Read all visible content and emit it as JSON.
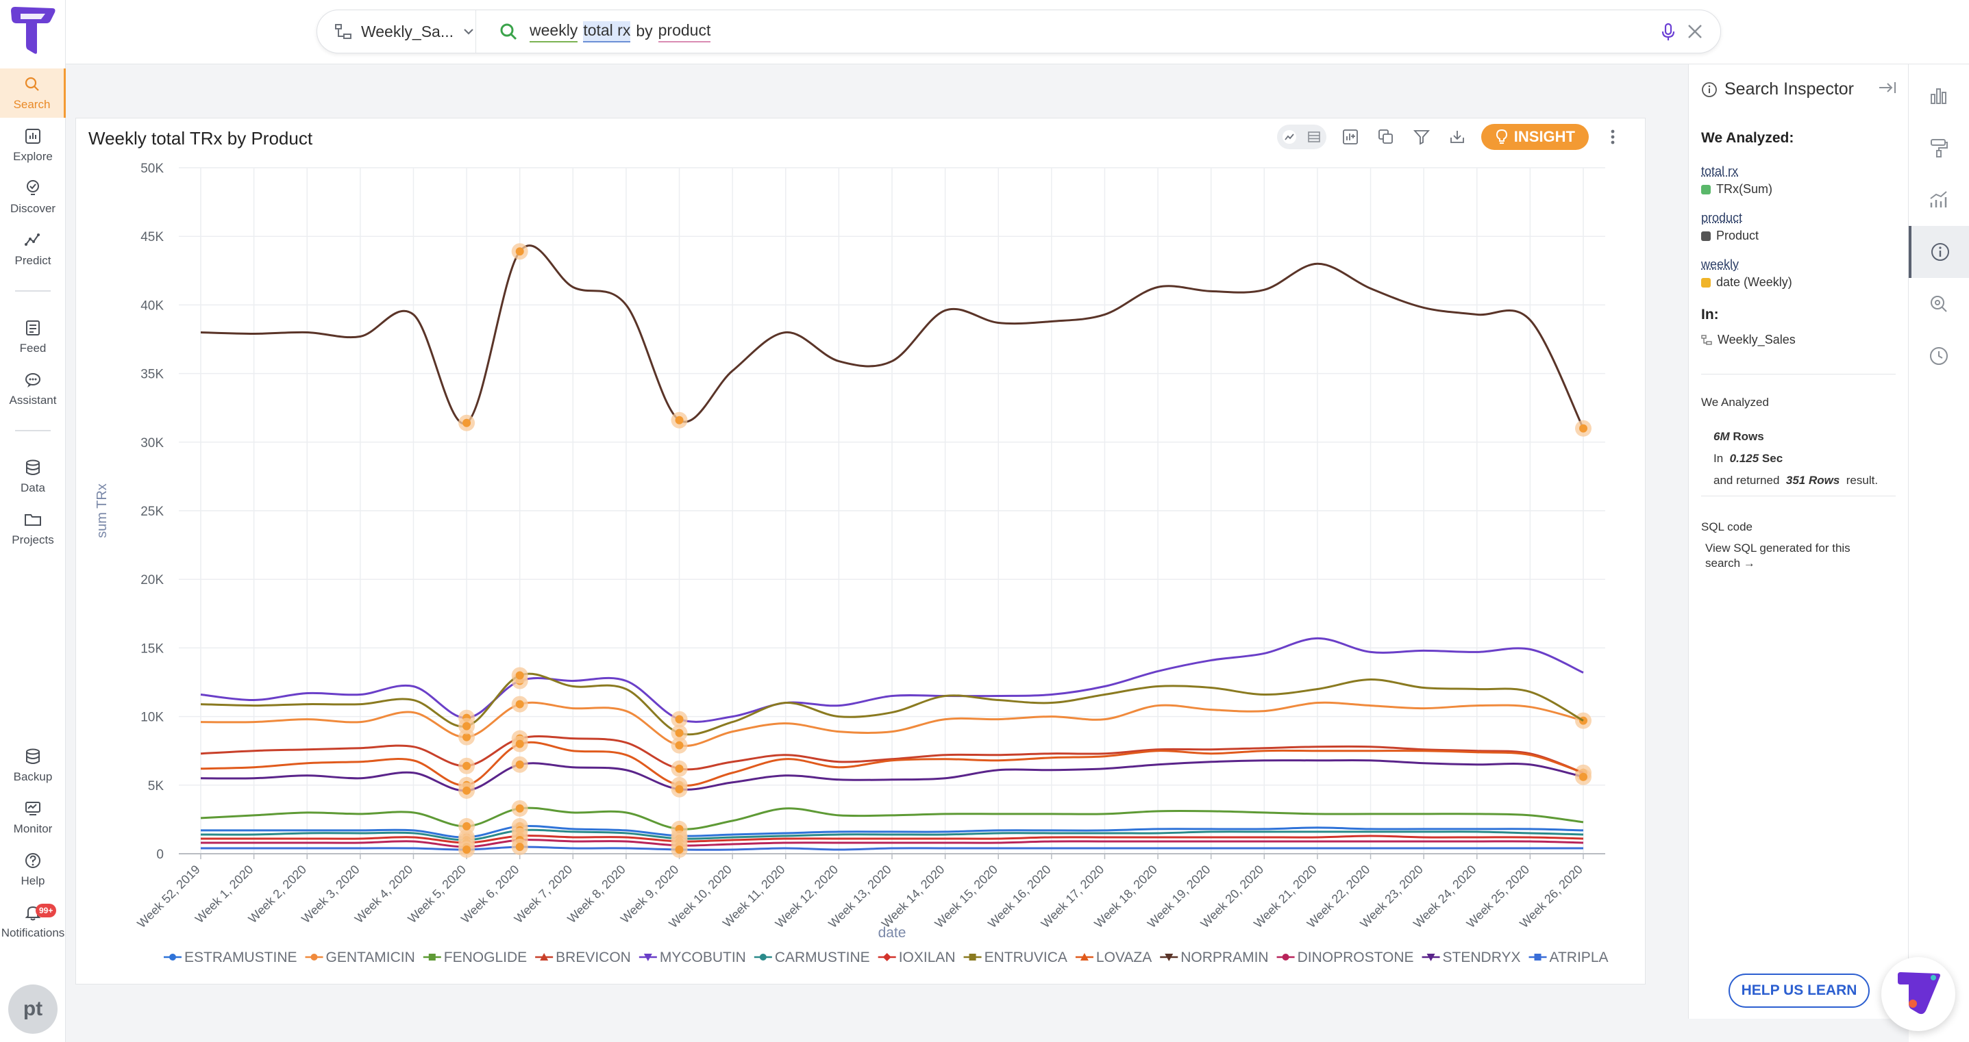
{
  "nav": {
    "items": [
      {
        "label": "Search",
        "icon": "search-icon"
      },
      {
        "label": "Explore",
        "icon": "explore-icon"
      },
      {
        "label": "Discover",
        "icon": "discover-icon"
      },
      {
        "label": "Predict",
        "icon": "predict-icon"
      },
      {
        "label": "Feed",
        "icon": "feed-icon"
      },
      {
        "label": "Assistant",
        "icon": "assistant-icon"
      },
      {
        "label": "Data",
        "icon": "database-icon"
      },
      {
        "label": "Projects",
        "icon": "folder-icon"
      },
      {
        "label": "Backup",
        "icon": "backup-icon"
      },
      {
        "label": "Monitor",
        "icon": "monitor-icon"
      },
      {
        "label": "Help",
        "icon": "help-icon"
      },
      {
        "label": "Notifications",
        "icon": "bell-icon"
      }
    ],
    "notification_badge": "99+",
    "avatar_initials": "pt",
    "accent_color": "#f39a33"
  },
  "search": {
    "source": "Weekly_Sa...",
    "tokens": [
      "weekly",
      "total rx",
      "by",
      "product"
    ]
  },
  "card": {
    "title": "Weekly total TRx by Product",
    "insight_label": "INSIGHT"
  },
  "inspector": {
    "title": "Search Inspector",
    "we_analyzed_heading": "We Analyzed:",
    "columns": [
      {
        "token": "total rx",
        "column": "TRx(Sum)",
        "color": "#5ab86a"
      },
      {
        "token": "product",
        "column": "Product",
        "color": "#555555"
      },
      {
        "token": "weekly",
        "column": "date (Weekly)",
        "color": "#f0b429"
      }
    ],
    "in_heading": "In:",
    "source": "Weekly_Sales",
    "stats_heading": "We Analyzed",
    "rows_value": "6M",
    "rows_label": "Rows",
    "in_label": "In",
    "sec_value": "0.125",
    "sec_label": "Sec",
    "returned_prefix": "and returned",
    "returned_value": "351 Rows",
    "returned_suffix": "result.",
    "sql_heading": "SQL code",
    "sql_link": "View SQL generated for this search →",
    "help_button": "HELP US LEARN"
  },
  "chart_data": {
    "type": "line",
    "xlabel": "date",
    "ylabel": "sum TRx",
    "ylim": [
      0,
      50000
    ],
    "yticks": [
      "0",
      "5K",
      "10K",
      "15K",
      "20K",
      "25K",
      "30K",
      "35K",
      "40K",
      "45K",
      "50K"
    ],
    "x": [
      "Week 52, 2019",
      "Week 1, 2020",
      "Week 2, 2020",
      "Week 3, 2020",
      "Week 4, 2020",
      "Week 5, 2020",
      "Week 6, 2020",
      "Week 7, 2020",
      "Week 8, 2020",
      "Week 9, 2020",
      "Week 10, 2020",
      "Week 11, 2020",
      "Week 12, 2020",
      "Week 13, 2020",
      "Week 14, 2020",
      "Week 15, 2020",
      "Week 16, 2020",
      "Week 17, 2020",
      "Week 18, 2020",
      "Week 19, 2020",
      "Week 20, 2020",
      "Week 21, 2020",
      "Week 22, 2020",
      "Week 23, 2020",
      "Week 24, 2020",
      "Week 25, 2020",
      "Week 26, 2020"
    ],
    "legend_position": "bottom",
    "grid": true,
    "series": [
      {
        "name": "ESTRAMUSTINE",
        "color": "#2f73d8",
        "marker": "circle",
        "values": [
          1700,
          1700,
          1700,
          1700,
          1700,
          1200,
          2000,
          1800,
          1700,
          1300,
          1400,
          1500,
          1600,
          1600,
          1600,
          1700,
          1700,
          1700,
          1800,
          1800,
          1800,
          1900,
          1800,
          1800,
          1800,
          1800,
          1700
        ]
      },
      {
        "name": "GENTAMICIN",
        "color": "#f08a3c",
        "marker": "circle",
        "values": [
          9600,
          9600,
          9800,
          9600,
          10300,
          8500,
          10900,
          10600,
          10400,
          7900,
          8900,
          9500,
          8900,
          8900,
          9800,
          9800,
          10000,
          9800,
          10800,
          10500,
          10400,
          11000,
          10800,
          10600,
          10800,
          10700,
          9700
        ]
      },
      {
        "name": "FENOGLIDE",
        "color": "#5e9a35",
        "marker": "square",
        "values": [
          2600,
          2800,
          3000,
          2900,
          3000,
          2000,
          3300,
          3000,
          3000,
          1800,
          2400,
          3300,
          2800,
          2800,
          2900,
          2900,
          2900,
          2900,
          3100,
          3100,
          3000,
          2900,
          2900,
          2900,
          2900,
          2800,
          2300
        ]
      },
      {
        "name": "BREVICON",
        "color": "#c8402a",
        "marker": "triangle",
        "values": [
          7300,
          7500,
          7600,
          7700,
          7800,
          6400,
          8400,
          8400,
          8100,
          6200,
          6700,
          7200,
          6700,
          6900,
          7200,
          7200,
          7300,
          7300,
          7600,
          7600,
          7700,
          7800,
          7800,
          7600,
          7500,
          7300,
          5900
        ]
      },
      {
        "name": "MYCOBUTIN",
        "color": "#6a3fc8",
        "marker": "triangle-down",
        "values": [
          11600,
          11200,
          11700,
          11600,
          12200,
          9900,
          12600,
          12600,
          12600,
          9800,
          10000,
          11000,
          10800,
          11500,
          11500,
          11500,
          11600,
          12200,
          13300,
          14100,
          14600,
          15700,
          14700,
          14800,
          14700,
          14900,
          13200
        ]
      },
      {
        "name": "CARMUSTINE",
        "color": "#2a8a8a",
        "marker": "circle",
        "values": [
          1400,
          1400,
          1500,
          1500,
          1500,
          1000,
          1700,
          1600,
          1500,
          1100,
          1200,
          1300,
          1400,
          1400,
          1400,
          1500,
          1500,
          1500,
          1500,
          1600,
          1600,
          1600,
          1600,
          1600,
          1600,
          1500,
          1400
        ]
      },
      {
        "name": "IOXILAN",
        "color": "#d2332b",
        "marker": "diamond",
        "values": [
          1100,
          1100,
          1100,
          1100,
          1200,
          800,
          1300,
          1200,
          1200,
          900,
          1000,
          1100,
          1100,
          1100,
          1100,
          1100,
          1200,
          1200,
          1200,
          1200,
          1200,
          1200,
          1300,
          1200,
          1200,
          1200,
          1100
        ]
      },
      {
        "name": "ENTRUVICA",
        "color": "#8a7a20",
        "marker": "square",
        "values": [
          10900,
          10800,
          10900,
          10900,
          11200,
          9300,
          13000,
          12200,
          12000,
          8800,
          9600,
          11000,
          10000,
          10300,
          11500,
          11200,
          11000,
          11600,
          12200,
          12100,
          11600,
          12000,
          12700,
          12100,
          12000,
          11800,
          9700
        ]
      },
      {
        "name": "LOVAZA",
        "color": "#e05a1c",
        "marker": "triangle",
        "values": [
          6200,
          6300,
          6600,
          6700,
          6800,
          5000,
          8000,
          7500,
          7200,
          5000,
          5900,
          6900,
          6300,
          6800,
          6900,
          6800,
          7000,
          7100,
          7500,
          7300,
          7500,
          7500,
          7500,
          7500,
          7400,
          7200,
          5900
        ]
      },
      {
        "name": "NORPRAMIN",
        "color": "#5a3428",
        "marker": "triangle-down",
        "values": [
          38000,
          37900,
          38000,
          37700,
          39300,
          31400,
          43900,
          41300,
          40000,
          31600,
          35200,
          38000,
          35900,
          35900,
          39600,
          38700,
          38800,
          39300,
          41300,
          41000,
          41100,
          43000,
          41200,
          39800,
          39300,
          38900,
          31000
        ]
      },
      {
        "name": "DINOPROSTONE",
        "color": "#b8245a",
        "marker": "circle",
        "values": [
          800,
          800,
          800,
          800,
          900,
          500,
          1000,
          900,
          900,
          600,
          700,
          800,
          800,
          800,
          800,
          800,
          900,
          900,
          900,
          900,
          900,
          900,
          900,
          900,
          900,
          900,
          800
        ]
      },
      {
        "name": "STENDRYX",
        "color": "#5a248a",
        "marker": "triangle-down",
        "values": [
          5500,
          5500,
          5700,
          5500,
          5900,
          4600,
          6500,
          6300,
          6100,
          4700,
          5200,
          5700,
          5400,
          5400,
          5500,
          6100,
          6100,
          6200,
          6500,
          6700,
          6800,
          6800,
          6800,
          6600,
          6500,
          6500,
          5600
        ]
      },
      {
        "name": "ATRIPLA",
        "color": "#3a6ed8",
        "marker": "square",
        "values": [
          400,
          400,
          400,
          400,
          400,
          300,
          500,
          400,
          400,
          300,
          300,
          400,
          300,
          400,
          400,
          400,
          400,
          400,
          400,
          400,
          400,
          400,
          400,
          400,
          400,
          400,
          400
        ]
      }
    ]
  }
}
